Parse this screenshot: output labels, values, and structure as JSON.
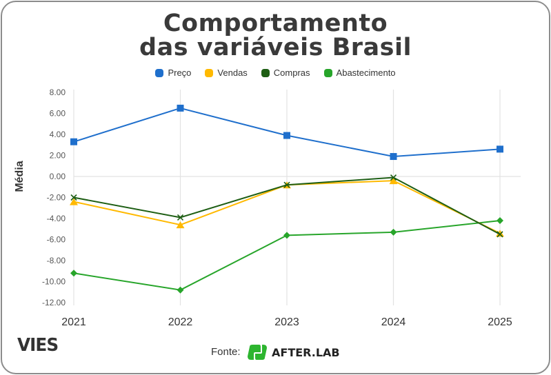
{
  "header": {
    "title_line1": "Comportamento",
    "title_line2": "das variáveis Brasil"
  },
  "footer": {
    "brand": "VIES",
    "source_label": "Fonte:",
    "source_brand": "AFTER.LAB"
  },
  "colors": {
    "preco": "#1f6fcc",
    "vendas": "#ffb900",
    "compras": "#1e5e14",
    "abastecimento": "#27a52a",
    "axis_text": "#555555",
    "grid": "#e0e0e0"
  },
  "chart_data": {
    "type": "line",
    "title": "Comportamento das variáveis Brasil",
    "xlabel": "",
    "ylabel": "Média",
    "x": [
      "2021",
      "2022",
      "2023",
      "2024",
      "2025"
    ],
    "ylim": [
      -12,
      8
    ],
    "yticks": [
      "8.00",
      "6.00",
      "4.00",
      "2.00",
      "0.00",
      "-2.00",
      "-4.00",
      "-6.00",
      "-8.00",
      "-10.00",
      "-12.00"
    ],
    "ytick_values": [
      8,
      6,
      4,
      2,
      0,
      -2,
      -4,
      -6,
      -8,
      -10,
      -12
    ],
    "legend_position": "top-center",
    "grid": "vertical lines at each category plus zero line",
    "series": [
      {
        "name": "Preço",
        "marker": "square",
        "color": "#1f6fcc",
        "values": [
          3.3,
          6.5,
          3.9,
          1.9,
          2.6
        ]
      },
      {
        "name": "Vendas",
        "marker": "triangle",
        "color": "#ffb900",
        "values": [
          -2.4,
          -4.6,
          -0.8,
          -0.4,
          -5.4
        ]
      },
      {
        "name": "Compras",
        "marker": "x",
        "color": "#1e5e14",
        "values": [
          -2.0,
          -3.9,
          -0.8,
          -0.1,
          -5.5
        ]
      },
      {
        "name": "Abastecimento",
        "marker": "diamond",
        "color": "#27a52a",
        "values": [
          -9.2,
          -10.8,
          -5.6,
          -5.3,
          -4.2
        ]
      }
    ]
  }
}
